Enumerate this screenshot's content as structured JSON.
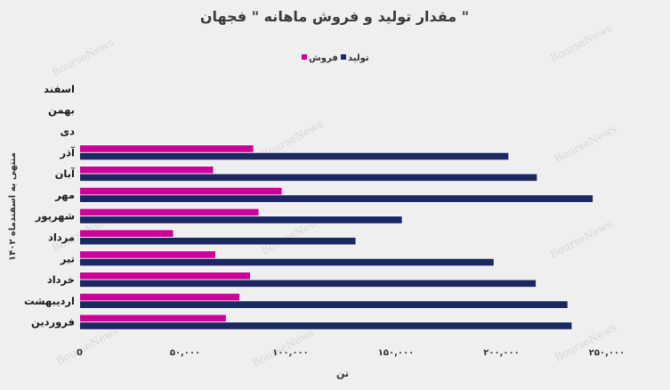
{
  "watermark": "BourseNews",
  "colors": {
    "background": "#efefef",
    "text": "#333333"
  },
  "chart_data": {
    "type": "bar",
    "orientation": "horizontal",
    "title": "مقدار تولید و فروش ماهانه \" فجهان \"",
    "categories": [
      "اسفند",
      "بهمن",
      "دی",
      "آذر",
      "آبان",
      "مهر",
      "شهریور",
      "مرداد",
      "تیر",
      "خرداد",
      "اردیبهشت",
      "فروردین"
    ],
    "series": [
      {
        "name": "فروش",
        "color": "#cc0099",
        "values": [
          null,
          null,
          null,
          82500,
          63500,
          96000,
          85000,
          44500,
          64500,
          81000,
          76000,
          69500
        ]
      },
      {
        "name": "تولید",
        "color": "#1c2862",
        "values": [
          null,
          null,
          null,
          203500,
          217000,
          243500,
          153000,
          131000,
          196500,
          216500,
          231500,
          233500
        ]
      }
    ],
    "xlabel": "تن",
    "ylabel": "منتهی به اسفندماه ۱۴۰۲",
    "xlim": [
      0,
      250000
    ],
    "xtick_values": [
      0,
      50000,
      100000,
      150000,
      200000,
      250000
    ],
    "xticks": [
      "0",
      "۵۰,۰۰۰",
      "۱۰۰,۰۰۰",
      "۱۵۰,۰۰۰",
      "۲۰۰,۰۰۰",
      "۲۵۰,۰۰۰"
    ],
    "legend": "top-center",
    "grid": false
  }
}
